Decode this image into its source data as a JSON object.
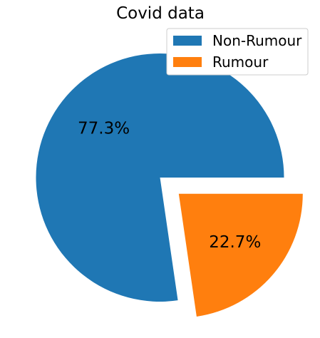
{
  "chart_data": {
    "type": "pie",
    "title": "Covid data",
    "categories": [
      "Non-Rumour",
      "Rumour"
    ],
    "values": [
      77.3,
      22.7
    ],
    "value_labels": [
      "77.3%",
      "22.7%"
    ],
    "colors": [
      "#1f77b4",
      "#ff7f0e"
    ],
    "explode": [
      0,
      0.2
    ],
    "start_angle": 0,
    "direction": "counterclockwise",
    "legend_position": "top-right"
  }
}
